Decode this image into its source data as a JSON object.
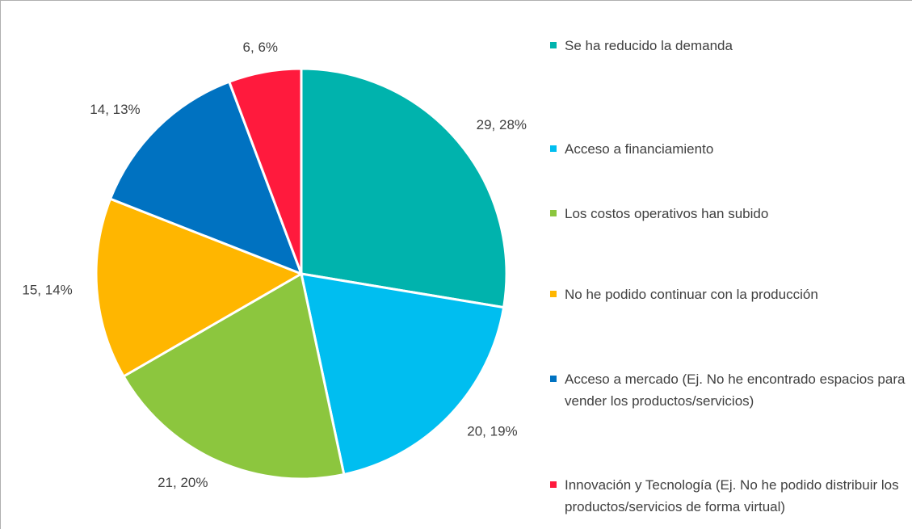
{
  "chart_data": {
    "type": "pie",
    "categories": [
      "Se ha reducido la demanda",
      "Acceso a financiamiento",
      "Los costos operativos han subido",
      "No he podido continuar con la producción",
      "Acceso a mercado (Ej. No he encontrado espacios para vender los productos/servicios)",
      "Innovación y Tecnología (Ej. No he podido distribuir los productos/servicios de forma virtual)"
    ],
    "values": [
      29,
      20,
      21,
      15,
      14,
      6
    ],
    "value_labels": [
      "29, 28%",
      "20, 19%",
      "21, 20%",
      "15, 14%",
      "14, 13%",
      "6, 6%"
    ],
    "colors": [
      "#00b3ad",
      "#00bef0",
      "#8cc63e",
      "#ffb600",
      "#0072c1",
      "#ff1a3d"
    ]
  }
}
